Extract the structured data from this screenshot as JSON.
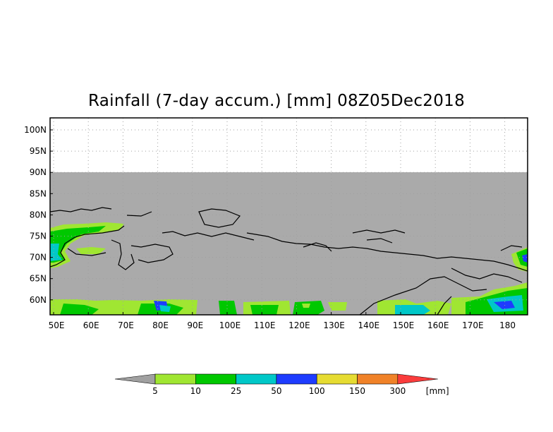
{
  "title": "Rainfall (7-day accum.) [mm] 08Z05Dec2018",
  "colors": {
    "frame": "#000000",
    "grid": "#a0a0a0",
    "background": "#ffffff",
    "map_fill": "#aaaaaa",
    "coastline": "#000000"
  },
  "axes": {
    "lat_labels": [
      "100N",
      "95N",
      "90N",
      "85N",
      "80N",
      "75N",
      "70N",
      "65N",
      "60N"
    ],
    "lon_labels": [
      "50E",
      "60E",
      "70E",
      "80E",
      "90E",
      "100E",
      "110E",
      "120E",
      "130E",
      "140E",
      "150E",
      "160E",
      "170E",
      "180"
    ]
  },
  "legend": {
    "boundaries": [
      "5",
      "10",
      "25",
      "50",
      "100",
      "150",
      "300"
    ],
    "unit": "[mm]",
    "colors": [
      "#a0a0a0",
      "#a0e632",
      "#00c800",
      "#00c8c8",
      "#1e3cff",
      "#e6dc32",
      "#f08228",
      "#fa3c3c"
    ]
  },
  "rain_colors": {
    "light": "#a0e632",
    "mid": "#00c800",
    "teal": "#00c8c8",
    "blue": "#1e3cff"
  }
}
